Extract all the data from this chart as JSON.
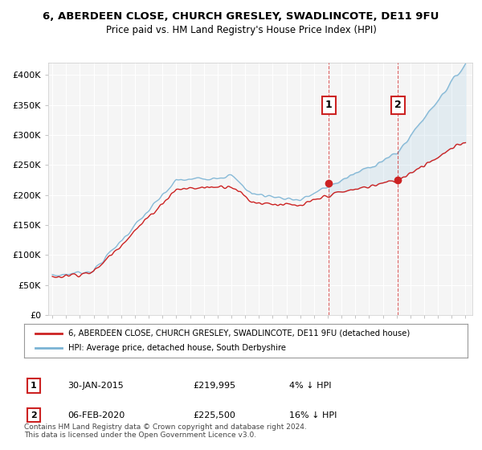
{
  "title": "6, ABERDEEN CLOSE, CHURCH GRESLEY, SWADLINCOTE, DE11 9FU",
  "subtitle": "Price paid vs. HM Land Registry's House Price Index (HPI)",
  "ylim": [
    0,
    420000
  ],
  "yticks": [
    0,
    50000,
    100000,
    150000,
    200000,
    250000,
    300000,
    350000,
    400000
  ],
  "ytick_labels": [
    "£0",
    "£50K",
    "£100K",
    "£150K",
    "£200K",
    "£250K",
    "£300K",
    "£350K",
    "£400K"
  ],
  "hpi_color": "#7ab3d4",
  "price_color": "#cc2222",
  "vline1_color": "#cc2222",
  "vline2_color": "#cc2222",
  "marker_box1_color": "#cc2222",
  "marker_box2_color": "#cc2222",
  "sale1_date": "30-JAN-2015",
  "sale1_price": "£219,995",
  "sale1_hpi": "4% ↓ HPI",
  "sale2_date": "06-FEB-2020",
  "sale2_price": "£225,500",
  "sale2_hpi": "16% ↓ HPI",
  "legend_label1": "6, ABERDEEN CLOSE, CHURCH GRESLEY, SWADLINCOTE, DE11 9FU (detached house)",
  "legend_label2": "HPI: Average price, detached house, South Derbyshire",
  "footer": "Contains HM Land Registry data © Crown copyright and database right 2024.\nThis data is licensed under the Open Government Licence v3.0.",
  "background_color": "#ffffff",
  "plot_bg_color": "#f5f5f5",
  "grid_color": "#ffffff",
  "sale1_x": 2015.08,
  "sale2_x": 2020.09,
  "sale1_y": 219995,
  "sale2_y": 225500,
  "xlim_left": 1994.7,
  "xlim_right": 2025.5
}
